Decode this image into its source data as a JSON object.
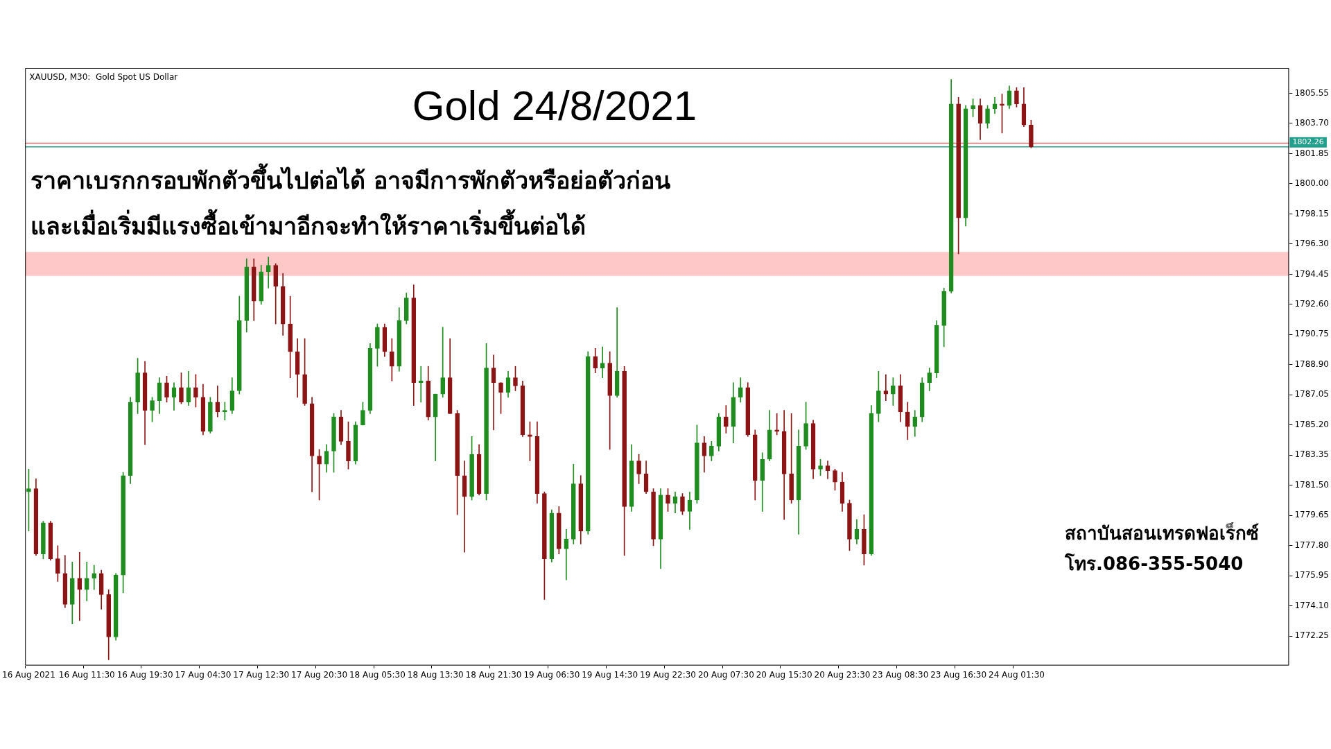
{
  "chart_data": {
    "type": "candlestick",
    "title": "Gold 24/8/2021",
    "annotations": [
      "XAUUSD, M30:  Gold Spot US Dollar",
      "ราคาเบรกกรอบพักตัวขึ้นไปต่อได้ อาจมีการพักตัวหรือย่อตัวก่อน",
      "และเมื่อเริ่มมีแรงซื้อเข้ามาอีกจะทำให้ราคาเริ่มขึ้นต่อได้",
      "สถาบันสอนเทรดฟอเร็กซ์",
      "โทร.086-355-5040"
    ],
    "categories": [
      "16 Aug 2021",
      null,
      null,
      null,
      null,
      null,
      null,
      null,
      "16 Aug 11:30",
      null,
      null,
      null,
      null,
      null,
      null,
      null,
      "16 Aug 19:30",
      null,
      null,
      null,
      null,
      null,
      null,
      null,
      "17 Aug 04:30",
      null,
      null,
      null,
      null,
      null,
      null,
      null,
      "17 Aug 12:30",
      null,
      null,
      null,
      null,
      null,
      null,
      null,
      "17 Aug 20:30",
      null,
      null,
      null,
      null,
      null,
      null,
      null,
      "18 Aug 05:30",
      null,
      null,
      null,
      null,
      null,
      null,
      null,
      "18 Aug 13:30",
      null,
      null,
      null,
      null,
      null,
      null,
      null,
      "18 Aug 21:30",
      null,
      null,
      null,
      null,
      null,
      null,
      null,
      "19 Aug 06:30",
      null,
      null,
      null,
      null,
      null,
      null,
      null,
      "19 Aug 14:30",
      null,
      null,
      null,
      null,
      null,
      null,
      null,
      "19 Aug 22:30",
      null,
      null,
      null,
      null,
      null,
      null,
      null,
      "20 Aug 07:30",
      null,
      null,
      null,
      null,
      null,
      null,
      null,
      "20 Aug 15:30",
      null,
      null,
      null,
      null,
      null,
      null,
      null,
      "20 Aug 23:30",
      null,
      null,
      null,
      null,
      null,
      null,
      null,
      "23 Aug 08:30",
      null,
      null,
      null,
      null,
      null,
      null,
      null,
      "23 Aug 16:30",
      null,
      null,
      null,
      null,
      null,
      null,
      null,
      "24 Aug 01:30",
      null,
      null,
      null,
      null,
      null,
      null,
      null,
      null,
      null,
      null,
      null,
      null,
      null,
      null,
      null,
      null,
      null,
      null,
      null,
      null,
      null,
      null,
      null,
      null,
      null,
      null,
      null,
      null,
      null,
      null,
      null,
      null,
      null,
      null,
      null,
      null,
      null
    ],
    "ohlc": [
      [
        1781.1,
        1782.5,
        1778.7,
        1781.3
      ],
      [
        1781.3,
        1781.9,
        1777.2,
        1777.3
      ],
      [
        1777.3,
        1779.3,
        1777.0,
        1779.2
      ],
      [
        1779.2,
        1779.3,
        1776.9,
        1777.0
      ],
      [
        1777.0,
        1777.8,
        1775.6,
        1776.1
      ],
      [
        1776.1,
        1777.2,
        1774.0,
        1774.2
      ],
      [
        1774.2,
        1776.8,
        1773.0,
        1775.8
      ],
      [
        1775.8,
        1777.4,
        1773.2,
        1775.1
      ],
      [
        1775.1,
        1776.8,
        1774.4,
        1775.8
      ],
      [
        1775.8,
        1776.6,
        1775.1,
        1776.1
      ],
      [
        1776.1,
        1776.3,
        1773.9,
        1774.8
      ],
      [
        1774.8,
        1775.1,
        1770.8,
        1772.2
      ],
      [
        1772.2,
        1776.1,
        1772.0,
        1776.0
      ],
      [
        1776.0,
        1782.3,
        1774.9,
        1782.1
      ],
      [
        1782.1,
        1786.9,
        1781.6,
        1786.6
      ],
      [
        1786.6,
        1789.3,
        1785.9,
        1788.4
      ],
      [
        1788.4,
        1789.1,
        1784.0,
        1786.1
      ],
      [
        1786.1,
        1786.9,
        1785.4,
        1786.7
      ],
      [
        1786.7,
        1788.1,
        1785.9,
        1787.8
      ],
      [
        1787.8,
        1788.2,
        1786.6,
        1786.9
      ],
      [
        1786.9,
        1787.8,
        1786.1,
        1787.5
      ],
      [
        1787.5,
        1788.4,
        1786.5,
        1786.6
      ],
      [
        1786.6,
        1788.5,
        1786.4,
        1787.5
      ],
      [
        1787.5,
        1788.3,
        1786.3,
        1786.9
      ],
      [
        1786.9,
        1787.7,
        1784.6,
        1784.8
      ],
      [
        1784.8,
        1786.9,
        1784.7,
        1786.6
      ],
      [
        1786.6,
        1787.6,
        1785.7,
        1786.0
      ],
      [
        1786.0,
        1786.6,
        1785.5,
        1786.1
      ],
      [
        1786.1,
        1788.1,
        1785.9,
        1787.3
      ],
      [
        1787.3,
        1793.1,
        1787.1,
        1791.6
      ],
      [
        1791.6,
        1795.4,
        1790.9,
        1794.9
      ],
      [
        1794.9,
        1795.4,
        1791.6,
        1792.8
      ],
      [
        1792.8,
        1795.0,
        1792.6,
        1794.6
      ],
      [
        1794.6,
        1795.5,
        1793.6,
        1795.0
      ],
      [
        1795.0,
        1795.1,
        1791.4,
        1793.7
      ],
      [
        1793.7,
        1794.5,
        1790.7,
        1791.4
      ],
      [
        1791.4,
        1793.1,
        1788.1,
        1789.7
      ],
      [
        1789.7,
        1790.5,
        1786.9,
        1788.3
      ],
      [
        1788.3,
        1790.5,
        1786.4,
        1786.5
      ],
      [
        1786.5,
        1786.9,
        1781.1,
        1783.3
      ],
      [
        1783.3,
        1783.7,
        1780.6,
        1782.8
      ],
      [
        1782.8,
        1784.0,
        1782.3,
        1783.6
      ],
      [
        1783.6,
        1785.9,
        1782.3,
        1785.7
      ],
      [
        1785.7,
        1786.1,
        1784.0,
        1784.2
      ],
      [
        1784.2,
        1785.4,
        1782.5,
        1783.0
      ],
      [
        1783.0,
        1785.4,
        1782.8,
        1785.2
      ],
      [
        1785.2,
        1786.6,
        1785.2,
        1786.1
      ],
      [
        1786.1,
        1790.2,
        1785.9,
        1789.9
      ],
      [
        1789.9,
        1791.4,
        1788.8,
        1791.2
      ],
      [
        1791.2,
        1791.4,
        1789.4,
        1789.7
      ],
      [
        1789.7,
        1790.5,
        1787.9,
        1788.8
      ],
      [
        1788.8,
        1792.4,
        1788.5,
        1791.6
      ],
      [
        1791.6,
        1793.3,
        1791.4,
        1793.0
      ],
      [
        1793.0,
        1793.8,
        1786.4,
        1787.8
      ],
      [
        1787.8,
        1788.8,
        1786.6,
        1787.9
      ],
      [
        1787.9,
        1788.8,
        1785.5,
        1785.7
      ],
      [
        1785.7,
        1787.1,
        1783.0,
        1787.1
      ],
      [
        1787.1,
        1791.2,
        1786.9,
        1788.1
      ],
      [
        1788.1,
        1790.5,
        1785.9,
        1785.9
      ],
      [
        1785.9,
        1786.1,
        1779.7,
        1782.1
      ],
      [
        1782.1,
        1783.0,
        1777.4,
        1780.8
      ],
      [
        1780.8,
        1784.5,
        1780.6,
        1783.4
      ],
      [
        1783.4,
        1784.0,
        1780.9,
        1781.0
      ],
      [
        1781.0,
        1790.2,
        1780.6,
        1788.7
      ],
      [
        1788.7,
        1789.5,
        1784.9,
        1787.8
      ],
      [
        1787.8,
        1787.8,
        1785.9,
        1787.2
      ],
      [
        1787.2,
        1788.5,
        1786.9,
        1788.1
      ],
      [
        1788.1,
        1788.8,
        1787.3,
        1787.6
      ],
      [
        1787.6,
        1787.9,
        1784.5,
        1784.6
      ],
      [
        1784.6,
        1785.4,
        1783.0,
        1784.5
      ],
      [
        1784.5,
        1785.4,
        1780.4,
        1781.0
      ],
      [
        1781.0,
        1781.1,
        1774.5,
        1777.0
      ],
      [
        1777.0,
        1780.0,
        1776.8,
        1779.8
      ],
      [
        1779.8,
        1780.2,
        1777.3,
        1777.6
      ],
      [
        1777.6,
        1778.8,
        1775.7,
        1778.2
      ],
      [
        1778.2,
        1782.8,
        1777.9,
        1781.6
      ],
      [
        1781.6,
        1782.1,
        1777.9,
        1778.7
      ],
      [
        1778.7,
        1789.7,
        1778.5,
        1789.4
      ],
      [
        1789.4,
        1789.9,
        1788.4,
        1788.7
      ],
      [
        1788.7,
        1790.0,
        1788.1,
        1789.0
      ],
      [
        1789.0,
        1789.7,
        1783.7,
        1787.0
      ],
      [
        1787.0,
        1792.4,
        1786.9,
        1788.5
      ],
      [
        1788.5,
        1788.8,
        1777.2,
        1780.2
      ],
      [
        1780.2,
        1784.0,
        1779.9,
        1783.0
      ],
      [
        1783.0,
        1783.4,
        1781.6,
        1782.2
      ],
      [
        1782.2,
        1783.0,
        1781.0,
        1781.1
      ],
      [
        1781.1,
        1781.3,
        1777.8,
        1778.2
      ],
      [
        1778.2,
        1781.3,
        1776.4,
        1780.9
      ],
      [
        1780.9,
        1781.3,
        1779.9,
        1780.4
      ],
      [
        1780.4,
        1781.1,
        1779.8,
        1780.8
      ],
      [
        1780.8,
        1781.0,
        1779.7,
        1779.9
      ],
      [
        1779.9,
        1781.1,
        1778.8,
        1780.6
      ],
      [
        1780.6,
        1785.2,
        1780.4,
        1784.1
      ],
      [
        1784.1,
        1784.5,
        1782.3,
        1783.3
      ],
      [
        1783.3,
        1784.2,
        1783.0,
        1783.9
      ],
      [
        1783.9,
        1785.9,
        1783.6,
        1785.7
      ],
      [
        1785.7,
        1786.4,
        1784.7,
        1785.1
      ],
      [
        1785.1,
        1787.8,
        1784.1,
        1786.9
      ],
      [
        1786.9,
        1788.1,
        1786.6,
        1787.5
      ],
      [
        1787.5,
        1787.8,
        1784.5,
        1784.6
      ],
      [
        1784.6,
        1784.9,
        1780.6,
        1781.8
      ],
      [
        1781.8,
        1783.5,
        1779.9,
        1783.1
      ],
      [
        1783.1,
        1786.1,
        1783.0,
        1784.9
      ],
      [
        1784.9,
        1785.9,
        1784.6,
        1784.8
      ],
      [
        1784.8,
        1786.1,
        1779.4,
        1782.2
      ],
      [
        1782.2,
        1785.9,
        1780.4,
        1780.6
      ],
      [
        1780.6,
        1784.9,
        1778.5,
        1783.9
      ],
      [
        1783.9,
        1786.6,
        1783.7,
        1785.3
      ],
      [
        1785.3,
        1785.5,
        1781.9,
        1782.5
      ],
      [
        1782.5,
        1783.1,
        1782.1,
        1782.7
      ],
      [
        1782.7,
        1783.0,
        1781.9,
        1782.4
      ],
      [
        1782.4,
        1782.5,
        1781.2,
        1781.7
      ],
      [
        1781.7,
        1782.3,
        1779.9,
        1780.4
      ],
      [
        1780.4,
        1780.6,
        1777.5,
        1778.2
      ],
      [
        1778.2,
        1779.4,
        1777.9,
        1778.8
      ],
      [
        1778.8,
        1779.7,
        1776.6,
        1777.3
      ],
      [
        1777.3,
        1786.4,
        1777.2,
        1785.9
      ],
      [
        1785.9,
        1788.5,
        1785.4,
        1787.3
      ],
      [
        1787.3,
        1788.3,
        1786.7,
        1787.1
      ],
      [
        1787.1,
        1788.1,
        1786.4,
        1787.6
      ],
      [
        1787.6,
        1788.3,
        1785.4,
        1786.0
      ],
      [
        1786.0,
        1786.6,
        1784.3,
        1785.1
      ],
      [
        1785.1,
        1786.1,
        1784.5,
        1785.7
      ],
      [
        1785.7,
        1788.1,
        1785.4,
        1787.8
      ],
      [
        1787.8,
        1788.7,
        1787.3,
        1788.4
      ],
      [
        1788.4,
        1791.6,
        1788.1,
        1791.3
      ],
      [
        1791.3,
        1793.6,
        1790.0,
        1793.4
      ],
      [
        1793.4,
        1806.4,
        1793.3,
        1804.9
      ],
      [
        1804.9,
        1805.3,
        1795.7,
        1797.9
      ],
      [
        1797.9,
        1804.8,
        1797.4,
        1804.6
      ],
      [
        1804.6,
        1805.2,
        1804.1,
        1804.8
      ],
      [
        1804.8,
        1805.2,
        1802.7,
        1803.7
      ],
      [
        1803.7,
        1804.8,
        1803.4,
        1804.6
      ],
      [
        1804.6,
        1805.3,
        1804.3,
        1804.9
      ],
      [
        1804.9,
        1805.5,
        1803.1,
        1804.8
      ],
      [
        1804.8,
        1806.0,
        1804.6,
        1805.7
      ],
      [
        1805.7,
        1805.9,
        1804.7,
        1804.9
      ],
      [
        1804.9,
        1805.9,
        1803.5,
        1803.6
      ],
      [
        1803.6,
        1803.9,
        1802.2,
        1802.26
      ],
      null,
      null,
      null,
      null,
      null,
      null,
      null,
      null,
      null,
      null,
      null,
      null,
      null,
      null,
      null,
      null,
      null,
      null,
      null,
      null,
      null,
      null,
      null,
      null,
      null,
      null,
      null,
      null,
      null,
      null,
      null,
      null,
      null,
      null,
      null
    ],
    "colors": [
      "#1e8c1e",
      "#8c1414",
      "#1e8c1e",
      "#8c1414",
      "#8c1414",
      "#8c1414",
      "#1e8c1e",
      "#8c1414",
      "#1e8c1e",
      "#1e8c1e",
      "#8c1414",
      "#8c1414",
      "#1e8c1e",
      "#1e8c1e",
      "#1e8c1e",
      "#1e8c1e",
      "#8c1414",
      "#1e8c1e",
      "#1e8c1e",
      "#8c1414",
      "#1e8c1e",
      "#8c1414",
      "#1e8c1e",
      "#8c1414",
      "#8c1414",
      "#1e8c1e",
      "#8c1414",
      "#1e8c1e",
      "#1e8c1e",
      "#1e8c1e",
      "#1e8c1e",
      "#8c1414",
      "#1e8c1e",
      "#1e8c1e",
      "#8c1414",
      "#8c1414",
      "#8c1414",
      "#8c1414",
      "#8c1414",
      "#8c1414",
      "#8c1414",
      "#1e8c1e",
      "#1e8c1e",
      "#8c1414",
      "#8c1414",
      "#1e8c1e",
      "#1e8c1e",
      "#1e8c1e",
      "#1e8c1e",
      "#8c1414",
      "#8c1414",
      "#1e8c1e",
      "#1e8c1e",
      "#8c1414",
      "#1e8c1e",
      "#8c1414",
      "#1e8c1e",
      "#1e8c1e",
      "#8c1414",
      "#8c1414",
      "#8c1414",
      "#1e8c1e",
      "#8c1414",
      "#1e8c1e",
      "#8c1414",
      "#8c1414",
      "#1e8c1e",
      "#8c1414",
      "#8c1414",
      "#8c1414",
      "#8c1414",
      "#8c1414",
      "#1e8c1e",
      "#8c1414",
      "#1e8c1e",
      "#1e8c1e",
      "#8c1414",
      "#1e8c1e",
      "#8c1414",
      "#1e8c1e",
      "#8c1414",
      "#1e8c1e",
      "#8c1414",
      "#1e8c1e",
      "#8c1414",
      "#8c1414",
      "#8c1414",
      "#1e8c1e",
      "#8c1414",
      "#1e8c1e",
      "#8c1414",
      "#1e8c1e",
      "#1e8c1e",
      "#8c1414",
      "#1e8c1e",
      "#1e8c1e",
      "#8c1414",
      "#1e8c1e",
      "#1e8c1e",
      "#8c1414",
      "#8c1414",
      "#1e8c1e",
      "#1e8c1e",
      "#8c1414",
      "#8c1414",
      "#8c1414",
      "#1e8c1e",
      "#1e8c1e",
      "#8c1414",
      "#1e8c1e",
      "#8c1414",
      "#8c1414",
      "#8c1414",
      "#8c1414",
      "#1e8c1e",
      "#8c1414",
      "#1e8c1e",
      "#1e8c1e",
      "#8c1414",
      "#1e8c1e",
      "#8c1414",
      "#8c1414",
      "#1e8c1e",
      "#1e8c1e",
      "#1e8c1e",
      "#1e8c1e",
      "#1e8c1e",
      "#1e8c1e",
      "#8c1414",
      "#1e8c1e",
      "#1e8c1e",
      "#8c1414",
      "#1e8c1e",
      "#1e8c1e",
      "#8c1414",
      "#1e8c1e",
      "#8c1414",
      "#8c1414",
      "#8c1414",
      null,
      null,
      null,
      null,
      null,
      null,
      null,
      null,
      null,
      null,
      null,
      null,
      null,
      null,
      null,
      null,
      null,
      null,
      null,
      null,
      null,
      null,
      null,
      null,
      null,
      null,
      null,
      null,
      null,
      null,
      null,
      null,
      null,
      null,
      null
    ],
    "ylim": [
      1770.45,
      1807.1
    ],
    "yticks": [
      1772.25,
      {
        "value": 1774.1,
        "label": "1774.10"
      },
      1775.95,
      {
        "value": 1777.8,
        "label": "1777.80"
      },
      1779.65,
      {
        "value": 1781.5,
        "label": "1781.50"
      },
      1783.35,
      {
        "value": 1785.2,
        "label": "1785.20"
      },
      1787.05,
      {
        "value": 1788.9,
        "label": "1788.90"
      },
      1790.75,
      {
        "value": 1792.6,
        "label": "1792.60"
      },
      1794.45,
      {
        "value": 1796.3,
        "label": "1796.30"
      },
      1798.15,
      {
        "value": 1800,
        "label": "1800.00"
      },
      1801.85,
      {
        "value": 1803.7,
        "label": "1803.70"
      },
      1805.55
    ],
    "ref_lines": [
      {
        "axis": "y",
        "value": 1802.48,
        "color": "#e07070"
      },
      {
        "axis": "y",
        "value": 1802.26,
        "label": "1802.26",
        "color": "#20a08c"
      }
    ],
    "bands": [
      {
        "axis": "y",
        "from": 1794.35,
        "to": 1795.82,
        "color": "#ffc8c8"
      }
    ],
    "legend": false
  }
}
